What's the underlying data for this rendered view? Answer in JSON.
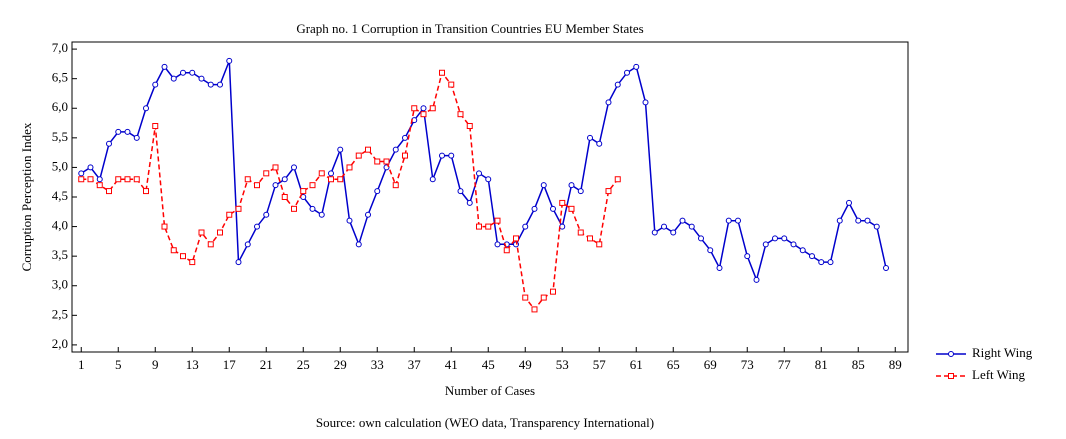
{
  "chart_data": {
    "type": "line",
    "title": "Graph no. 1 Corruption in Transition Countries EU Member States",
    "xlabel": "Number of Cases",
    "ylabel": "Corruption Perception Index",
    "note": "Source: own calculation (WEO data, Transparency International)",
    "xlim": [
      0,
      90
    ],
    "xticks": [
      1,
      5,
      9,
      13,
      17,
      21,
      25,
      29,
      33,
      37,
      41,
      45,
      49,
      53,
      57,
      61,
      65,
      69,
      73,
      77,
      81,
      85,
      89
    ],
    "ylim": [
      1.88,
      7.12
    ],
    "yticks": [
      {
        "value": 2.0,
        "label": "2,0"
      },
      {
        "value": 2.5,
        "label": "2,5"
      },
      {
        "value": 3.0,
        "label": "3,0"
      },
      {
        "value": 3.5,
        "label": "3,5"
      },
      {
        "value": 4.0,
        "label": "4,0"
      },
      {
        "value": 4.5,
        "label": "4,5"
      },
      {
        "value": 5.0,
        "label": "5,0"
      },
      {
        "value": 5.5,
        "label": "5,5"
      },
      {
        "value": 6.0,
        "label": "6,0"
      },
      {
        "value": 6.5,
        "label": "6,5"
      },
      {
        "value": 7.0,
        "label": "7,0"
      }
    ],
    "grid": false,
    "legend": "right",
    "series": [
      {
        "name": "Right Wing",
        "color": "#0000cc",
        "marker": "circle",
        "dash": false,
        "x": [
          1,
          2,
          3,
          4,
          5,
          6,
          7,
          8,
          9,
          10,
          11,
          12,
          13,
          14,
          15,
          16,
          17,
          18,
          19,
          20,
          21,
          22,
          23,
          24,
          25,
          26,
          27,
          28,
          29,
          30,
          31,
          32,
          33,
          34,
          35,
          36,
          37,
          38,
          39,
          40,
          41,
          42,
          43,
          44,
          45,
          46,
          47,
          48,
          49,
          50,
          51,
          52,
          53,
          54,
          55,
          56,
          57,
          58,
          59,
          60,
          61,
          62,
          63,
          64,
          65,
          66,
          67,
          68,
          69,
          70,
          71,
          72,
          73,
          74,
          75,
          76,
          77,
          78,
          79,
          80,
          81,
          82,
          83,
          84,
          85,
          86,
          87,
          88
        ],
        "values": [
          4.9,
          5.0,
          4.8,
          5.4,
          5.6,
          5.6,
          5.5,
          6.0,
          6.4,
          6.7,
          6.5,
          6.6,
          6.6,
          6.5,
          6.4,
          6.4,
          6.8,
          3.4,
          3.7,
          4.0,
          4.2,
          4.7,
          4.8,
          5.0,
          4.5,
          4.3,
          4.2,
          4.9,
          5.3,
          4.1,
          3.7,
          4.2,
          4.6,
          5.0,
          5.3,
          5.5,
          5.8,
          6.0,
          4.8,
          5.2,
          5.2,
          4.6,
          4.4,
          4.9,
          4.8,
          3.7,
          3.7,
          3.7,
          4.0,
          4.3,
          4.7,
          4.3,
          4.0,
          4.7,
          4.6,
          5.5,
          5.4,
          6.1,
          6.4,
          6.6,
          6.7,
          6.1,
          3.9,
          4.0,
          3.9,
          4.1,
          4.0,
          3.8,
          3.6,
          3.3,
          4.1,
          4.1,
          3.5,
          3.1,
          3.7,
          3.8,
          3.8,
          3.7,
          3.6,
          3.5,
          3.4,
          3.4,
          4.1,
          4.4,
          4.1,
          4.1,
          4.0,
          3.3
        ]
      },
      {
        "name": "Left Wing",
        "color": "#ff0000",
        "marker": "square",
        "dash": true,
        "x": [
          1,
          2,
          3,
          4,
          5,
          6,
          7,
          8,
          9,
          10,
          11,
          12,
          13,
          14,
          15,
          16,
          17,
          18,
          19,
          20,
          21,
          22,
          23,
          24,
          25,
          26,
          27,
          28,
          29,
          30,
          31,
          32,
          33,
          34,
          35,
          36,
          37,
          38,
          39,
          40,
          41,
          42,
          43,
          44,
          45,
          46,
          47,
          48,
          49,
          50,
          51,
          52,
          53,
          54,
          55,
          56,
          57,
          58,
          59
        ],
        "values": [
          4.8,
          4.8,
          4.7,
          4.6,
          4.8,
          4.8,
          4.8,
          4.6,
          5.7,
          4.0,
          3.6,
          3.5,
          3.4,
          3.9,
          3.7,
          3.9,
          4.2,
          4.3,
          4.8,
          4.7,
          4.9,
          5.0,
          4.5,
          4.3,
          4.6,
          4.7,
          4.9,
          4.8,
          4.8,
          5.0,
          5.2,
          5.3,
          5.1,
          5.1,
          4.7,
          5.2,
          6.0,
          5.9,
          6.0,
          6.6,
          6.4,
          5.9,
          5.7,
          4.0,
          4.0,
          4.1,
          3.6,
          3.8,
          2.8,
          2.6,
          2.8,
          2.9,
          4.4,
          4.3,
          3.9,
          3.8,
          3.7,
          4.6,
          4.8
        ]
      }
    ]
  }
}
